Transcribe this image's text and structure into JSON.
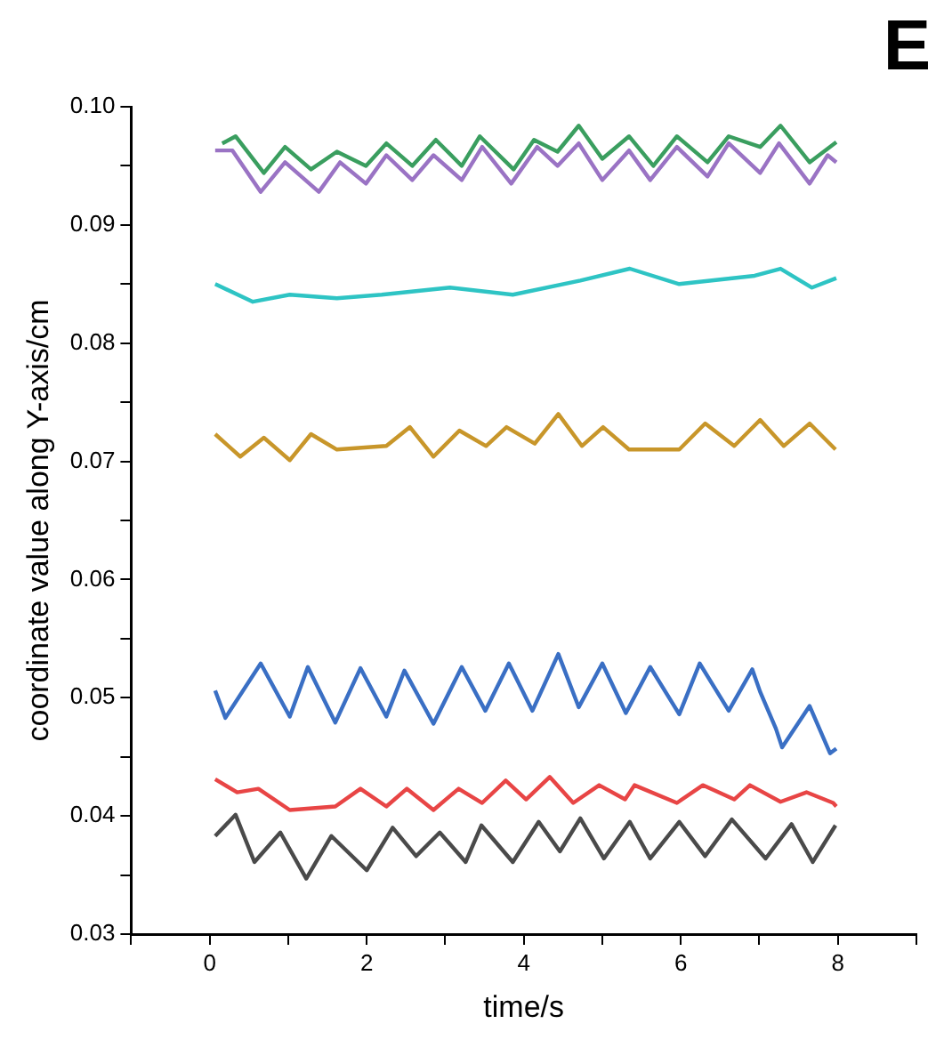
{
  "chart_data": {
    "type": "line",
    "xlabel": "time/s",
    "ylabel": "coordinate value along Y-axis/cm",
    "annotations": [
      "E"
    ],
    "marker": "none",
    "line_style": "solid",
    "xlim": [
      -1,
      9
    ],
    "xticks": [
      {
        "value": -1,
        "label": null
      },
      0,
      {
        "value": 1,
        "label": null
      },
      2,
      {
        "value": 3,
        "label": null
      },
      4,
      {
        "value": 5,
        "label": null
      },
      6,
      {
        "value": 7,
        "label": null
      },
      8,
      {
        "value": 9,
        "label": null
      }
    ],
    "ylim": [
      0.03,
      0.1
    ],
    "yticks": [
      0.03,
      {
        "value": 0.035,
        "label": null
      },
      0.04,
      {
        "value": 0.045,
        "label": null
      },
      0.05,
      {
        "value": 0.055,
        "label": null
      },
      0.06,
      {
        "value": 0.065,
        "label": null
      },
      0.07,
      {
        "value": 0.075,
        "label": null
      },
      0.08,
      {
        "value": 0.085,
        "label": null
      },
      0.09,
      {
        "value": 0.095,
        "label": null
      },
      {
        "value": 0.1,
        "label": "0.10"
      }
    ],
    "series": [
      {
        "color": "#3a9e5f",
        "x": [
          0.16,
          0.33,
          0.69,
          0.96,
          1.29,
          1.62,
          1.99,
          2.25,
          2.58,
          2.88,
          3.21,
          3.44,
          3.87,
          4.13,
          4.43,
          4.7,
          5.0,
          5.34,
          5.65,
          5.95,
          6.34,
          6.61,
          7.01,
          7.27,
          7.64,
          7.98
        ],
        "values": [
          0.0969,
          0.0975,
          0.0944,
          0.0966,
          0.0947,
          0.0962,
          0.095,
          0.0969,
          0.095,
          0.0972,
          0.095,
          0.0975,
          0.0947,
          0.0972,
          0.0962,
          0.0984,
          0.0956,
          0.0975,
          0.095,
          0.0975,
          0.0953,
          0.0975,
          0.0966,
          0.0984,
          0.0953,
          0.097
        ]
      },
      {
        "color": "#9a73c4",
        "x": [
          0.07,
          0.29,
          0.65,
          0.96,
          1.39,
          1.66,
          1.99,
          2.25,
          2.58,
          2.85,
          3.21,
          3.47,
          3.84,
          4.17,
          4.43,
          4.7,
          5.0,
          5.34,
          5.61,
          5.95,
          6.34,
          6.61,
          7.01,
          7.25,
          7.64,
          7.87,
          7.98
        ],
        "values": [
          0.0963,
          0.0963,
          0.0928,
          0.0953,
          0.0928,
          0.0953,
          0.0935,
          0.0959,
          0.0938,
          0.0959,
          0.0938,
          0.0966,
          0.0935,
          0.0966,
          0.095,
          0.0969,
          0.0938,
          0.0963,
          0.0938,
          0.0966,
          0.0941,
          0.0969,
          0.0944,
          0.0969,
          0.0935,
          0.0959,
          0.0953
        ]
      },
      {
        "color": "#2ec4c4",
        "x": [
          0.07,
          0.55,
          1.02,
          1.62,
          2.19,
          3.06,
          3.86,
          4.72,
          5.35,
          5.98,
          6.94,
          7.27,
          7.67,
          7.98
        ],
        "values": [
          0.085,
          0.0835,
          0.0841,
          0.0838,
          0.0841,
          0.0847,
          0.0841,
          0.0853,
          0.0863,
          0.085,
          0.0857,
          0.0863,
          0.0847,
          0.0855
        ]
      },
      {
        "color": "#c8962a",
        "x": [
          0.07,
          0.39,
          0.69,
          1.02,
          1.29,
          1.62,
          2.25,
          2.55,
          2.85,
          3.18,
          3.52,
          3.78,
          4.14,
          4.44,
          4.74,
          5.01,
          5.34,
          5.98,
          6.31,
          6.68,
          7.01,
          7.31,
          7.64,
          7.97
        ],
        "values": [
          0.0723,
          0.0704,
          0.072,
          0.0701,
          0.0723,
          0.071,
          0.0713,
          0.0729,
          0.0704,
          0.0726,
          0.0713,
          0.0729,
          0.0715,
          0.074,
          0.0713,
          0.0729,
          0.071,
          0.071,
          0.0732,
          0.0713,
          0.0735,
          0.0713,
          0.0732,
          0.071
        ]
      },
      {
        "color": "#3a6fc4",
        "x": [
          0.07,
          0.2,
          0.65,
          1.02,
          1.25,
          1.6,
          1.92,
          2.25,
          2.48,
          2.85,
          3.21,
          3.51,
          3.81,
          4.11,
          4.44,
          4.7,
          5.0,
          5.3,
          5.61,
          5.98,
          6.24,
          6.61,
          6.91,
          7.01,
          7.21,
          7.29,
          7.64,
          7.9,
          7.98
        ],
        "values": [
          0.0506,
          0.0483,
          0.0529,
          0.0484,
          0.0526,
          0.0479,
          0.0525,
          0.0484,
          0.0523,
          0.0478,
          0.0526,
          0.0489,
          0.0529,
          0.0489,
          0.0537,
          0.0492,
          0.0529,
          0.0487,
          0.0526,
          0.0486,
          0.0529,
          0.0489,
          0.0524,
          0.0505,
          0.0474,
          0.0458,
          0.0493,
          0.0453,
          0.0457
        ]
      },
      {
        "color": "#e84545",
        "x": [
          0.07,
          0.35,
          0.62,
          1.02,
          1.6,
          1.92,
          2.25,
          2.51,
          2.85,
          3.17,
          3.47,
          3.77,
          4.03,
          4.33,
          4.63,
          4.96,
          5.29,
          5.41,
          5.95,
          6.28,
          6.68,
          6.88,
          7.27,
          7.6,
          7.94,
          7.98
        ],
        "values": [
          0.0431,
          0.042,
          0.0423,
          0.0405,
          0.0408,
          0.0423,
          0.0408,
          0.0423,
          0.0405,
          0.0423,
          0.0411,
          0.043,
          0.0414,
          0.0433,
          0.0411,
          0.0426,
          0.0414,
          0.0426,
          0.0411,
          0.0426,
          0.0414,
          0.0426,
          0.0412,
          0.042,
          0.0411,
          0.0408
        ]
      },
      {
        "color": "#4a4a4a",
        "x": [
          0.07,
          0.33,
          0.57,
          0.9,
          1.23,
          1.55,
          2.0,
          2.33,
          2.63,
          2.93,
          3.26,
          3.46,
          3.86,
          4.19,
          4.46,
          4.72,
          5.02,
          5.35,
          5.61,
          5.98,
          6.31,
          6.65,
          7.08,
          7.41,
          7.68,
          7.97
        ],
        "values": [
          0.0383,
          0.0401,
          0.0361,
          0.0386,
          0.0347,
          0.0383,
          0.0354,
          0.039,
          0.0366,
          0.0386,
          0.0361,
          0.0392,
          0.0361,
          0.0395,
          0.037,
          0.0398,
          0.0364,
          0.0395,
          0.0364,
          0.0395,
          0.0366,
          0.0397,
          0.0364,
          0.0393,
          0.0361,
          0.0392
        ]
      }
    ]
  }
}
